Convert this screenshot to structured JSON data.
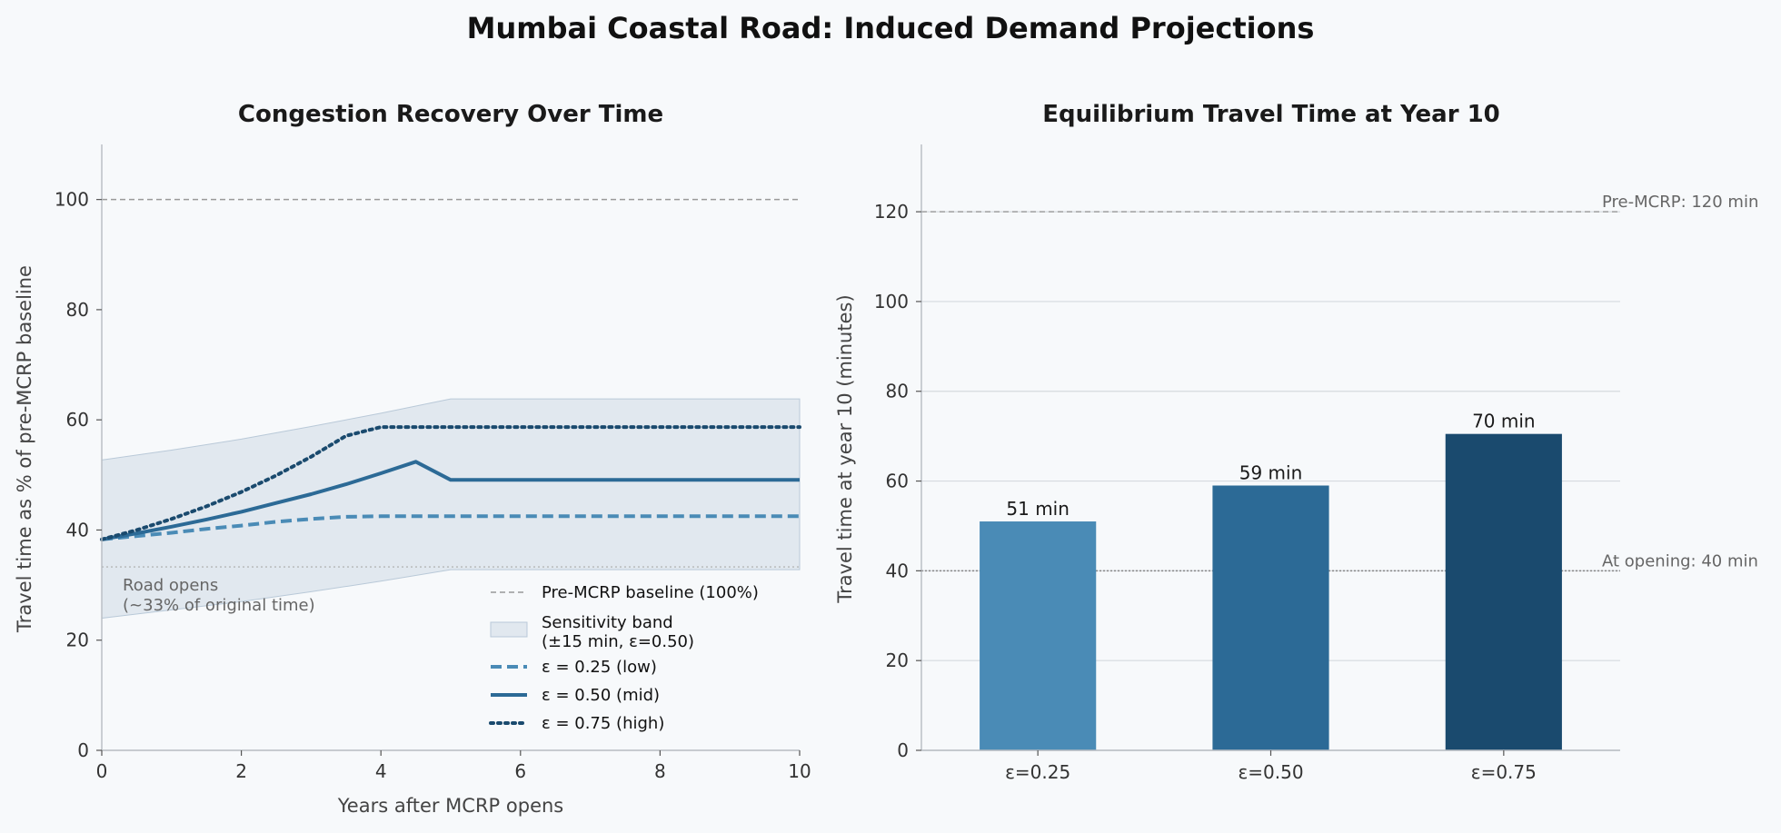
{
  "figure": {
    "title": "Mumbai Coastal Road: Induced Demand Projections"
  },
  "chart_data": [
    {
      "type": "line",
      "title": "Congestion Recovery Over Time",
      "xlabel": "Years after MCRP opens",
      "ylabel": "Travel time as % of pre-MCRP baseline",
      "xlim": [
        0,
        10
      ],
      "ylim": [
        0,
        110
      ],
      "xticks": [
        "0",
        "2",
        "4",
        "6",
        "8",
        "10"
      ],
      "yticks": [
        "0",
        "20",
        "40",
        "60",
        "80",
        "100"
      ],
      "grid": false,
      "legend_position": "lower right",
      "x": [
        0,
        0.5,
        1,
        1.5,
        2,
        2.5,
        3,
        3.5,
        4,
        4.5,
        5,
        6,
        7,
        8,
        9,
        10
      ],
      "series": [
        {
          "name": "ε = 0.25 (low)",
          "style": "dashed",
          "color": "#4a8bb6",
          "values": [
            38.3,
            38.9,
            39.5,
            40.2,
            40.8,
            41.5,
            42.0,
            42.4,
            42.5,
            42.5,
            42.5,
            42.5,
            42.5,
            42.5,
            42.5,
            42.5
          ]
        },
        {
          "name": "ε = 0.50 (mid)",
          "style": "solid",
          "color": "#2c6a96",
          "values": [
            38.3,
            39.4,
            40.6,
            41.9,
            43.3,
            44.9,
            46.5,
            48.3,
            50.3,
            52.4,
            49.1,
            49.1,
            49.1,
            49.1,
            49.1,
            49.1
          ]
        },
        {
          "name": "ε = 0.75 (high)",
          "style": "dotted",
          "color": "#1a4a6e",
          "values": [
            38.3,
            40.0,
            42.0,
            44.3,
            46.9,
            49.9,
            53.3,
            57.1,
            58.7,
            58.7,
            58.7,
            58.7,
            58.7,
            58.7,
            58.7,
            58.7
          ]
        }
      ],
      "band": {
        "name": "Sensitivity band\n(±15 min, ε=0.50)",
        "color": "#c5d3e0",
        "x": [
          0,
          1,
          2,
          3,
          4,
          5,
          6,
          8,
          10
        ],
        "lower": [
          24.0,
          25.5,
          27.0,
          28.8,
          30.7,
          32.8,
          32.8,
          32.8,
          32.8
        ],
        "upper": [
          52.7,
          54.5,
          56.5,
          58.8,
          61.2,
          63.8,
          63.8,
          63.8,
          63.8
        ]
      },
      "reference_lines": [
        {
          "name": "Pre-MCRP baseline (100%)",
          "y": 100,
          "style": "dashed",
          "color": "#999999"
        },
        {
          "y": 33.3,
          "style": "dotted",
          "color": "#aaaaaa"
        }
      ],
      "annotation": {
        "text": [
          "Road opens",
          "(~33% of original time)"
        ],
        "x": 0.3,
        "y": 29
      }
    },
    {
      "type": "bar",
      "title": "Equilibrium Travel Time at Year 10",
      "xlabel": "",
      "ylabel": "Travel time at year 10 (minutes)",
      "ylim": [
        0,
        135
      ],
      "yticks": [
        "0",
        "20",
        "40",
        "60",
        "80",
        "100",
        "120"
      ],
      "grid": true,
      "categories": [
        "ε=0.25",
        "ε=0.50",
        "ε=0.75"
      ],
      "values": [
        51,
        59,
        70.5
      ],
      "value_labels": [
        "51 min",
        "59 min",
        "70 min"
      ],
      "colors": [
        "#4a8bb6",
        "#2c6a96",
        "#1a4a6e"
      ],
      "reference_lines": [
        {
          "label": "Pre-MCRP: 120 min",
          "y": 120,
          "style": "dashed",
          "color": "#999999"
        },
        {
          "label": "At opening: 40 min",
          "y": 40,
          "style": "dotted",
          "color": "#888888"
        }
      ]
    }
  ]
}
